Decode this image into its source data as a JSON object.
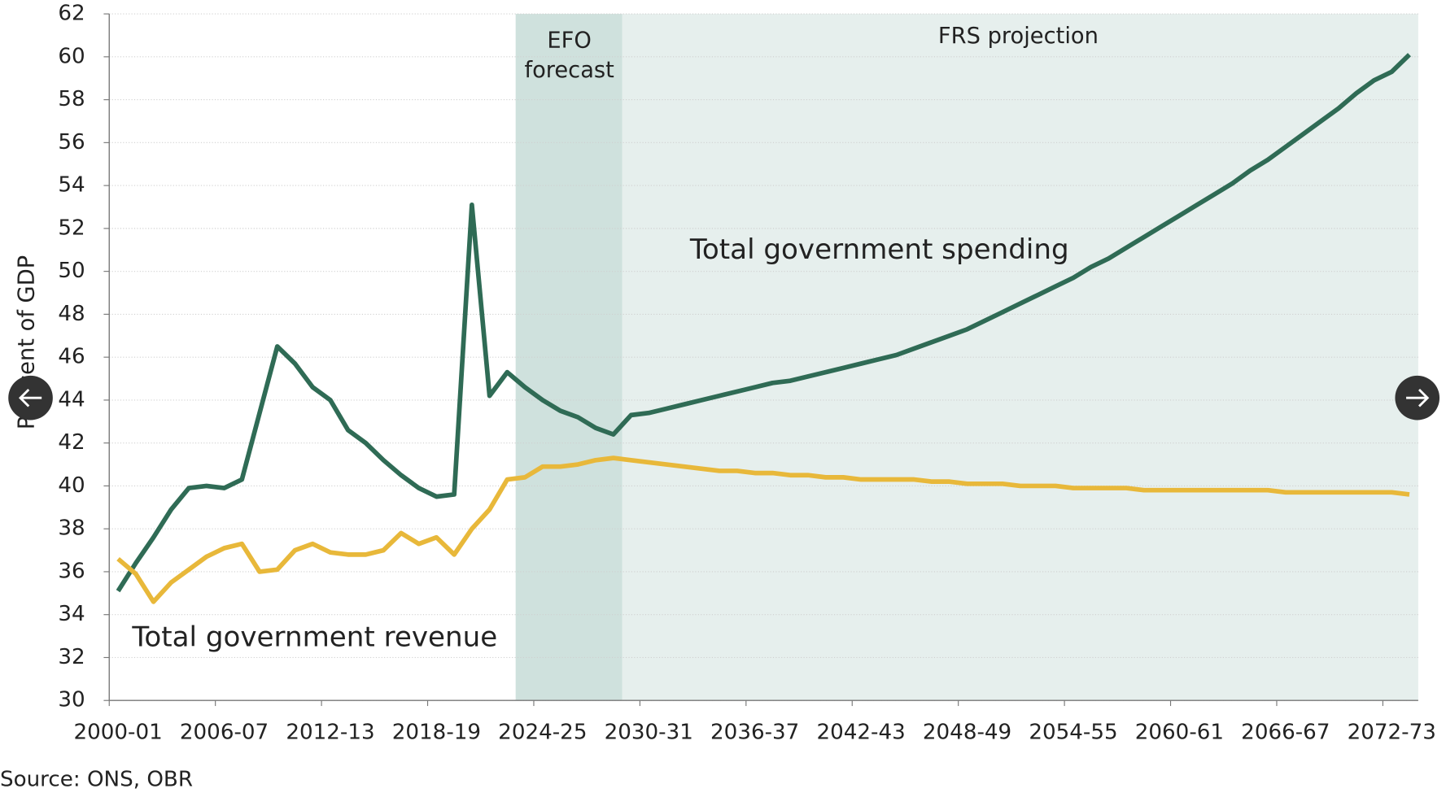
{
  "chart_data": {
    "type": "line",
    "y_label": "Per cent of GDP",
    "source": "Source: ONS, OBR",
    "efo_label": [
      "EFO",
      "forecast"
    ],
    "frs_label": "FRS projection",
    "categories": [
      "2000-01",
      null,
      null,
      null,
      null,
      null,
      "2006-07",
      null,
      null,
      null,
      null,
      null,
      "2012-13",
      null,
      null,
      null,
      null,
      null,
      "2018-19",
      null,
      null,
      null,
      null,
      null,
      "2024-25",
      null,
      null,
      null,
      null,
      null,
      "2030-31",
      null,
      null,
      null,
      null,
      null,
      "2036-37",
      null,
      null,
      null,
      null,
      null,
      "2042-43",
      null,
      null,
      null,
      null,
      null,
      "2048-49",
      null,
      null,
      null,
      null,
      null,
      "2054-55",
      null,
      null,
      null,
      null,
      null,
      "2060-61",
      null,
      null,
      null,
      null,
      null,
      "2066-67",
      null,
      null,
      null,
      null,
      null,
      "2072-73",
      null
    ],
    "series": [
      {
        "name": "Total government spending",
        "color": "#2f6b55",
        "values": [
          35.1,
          36.4,
          37.6,
          38.9,
          39.9,
          40.0,
          39.9,
          40.3,
          43.4,
          46.5,
          45.7,
          44.6,
          44.0,
          42.6,
          42.0,
          41.2,
          40.5,
          39.9,
          39.5,
          39.6,
          53.1,
          44.2,
          45.3,
          44.6,
          44.0,
          43.5,
          43.2,
          42.7,
          42.4,
          43.3,
          43.4,
          43.6,
          43.8,
          44.0,
          44.2,
          44.4,
          44.6,
          44.8,
          44.9,
          45.1,
          45.3,
          45.5,
          45.7,
          45.9,
          46.1,
          46.4,
          46.7,
          47.0,
          47.3,
          47.7,
          48.1,
          48.5,
          48.9,
          49.3,
          49.7,
          50.2,
          50.6,
          51.1,
          51.6,
          52.1,
          52.6,
          53.1,
          53.6,
          54.1,
          54.7,
          55.2,
          55.8,
          56.4,
          57.0,
          57.6,
          58.3,
          58.9,
          59.3,
          60.1
        ]
      },
      {
        "name": "Total government revenue",
        "color": "#e8b83a",
        "values": [
          36.6,
          35.9,
          34.6,
          35.5,
          36.1,
          36.7,
          37.1,
          37.3,
          36.0,
          36.1,
          37.0,
          37.3,
          36.9,
          36.8,
          36.8,
          37.0,
          37.8,
          37.3,
          37.6,
          36.8,
          38.0,
          38.9,
          40.3,
          40.4,
          40.9,
          40.9,
          41.0,
          41.2,
          41.3,
          41.2,
          41.1,
          41.0,
          40.9,
          40.8,
          40.7,
          40.7,
          40.6,
          40.6,
          40.5,
          40.5,
          40.4,
          40.4,
          40.3,
          40.3,
          40.3,
          40.3,
          40.2,
          40.2,
          40.1,
          40.1,
          40.1,
          40.0,
          40.0,
          40.0,
          39.9,
          39.9,
          39.9,
          39.9,
          39.8,
          39.8,
          39.8,
          39.8,
          39.8,
          39.8,
          39.8,
          39.8,
          39.7,
          39.7,
          39.7,
          39.7,
          39.7,
          39.7,
          39.7,
          39.6
        ]
      }
    ],
    "ylim": [
      30,
      62
    ],
    "yticks": [
      30,
      32,
      34,
      36,
      38,
      40,
      42,
      44,
      46,
      48,
      50,
      52,
      54,
      56,
      58,
      60,
      62
    ],
    "grid": true
  }
}
